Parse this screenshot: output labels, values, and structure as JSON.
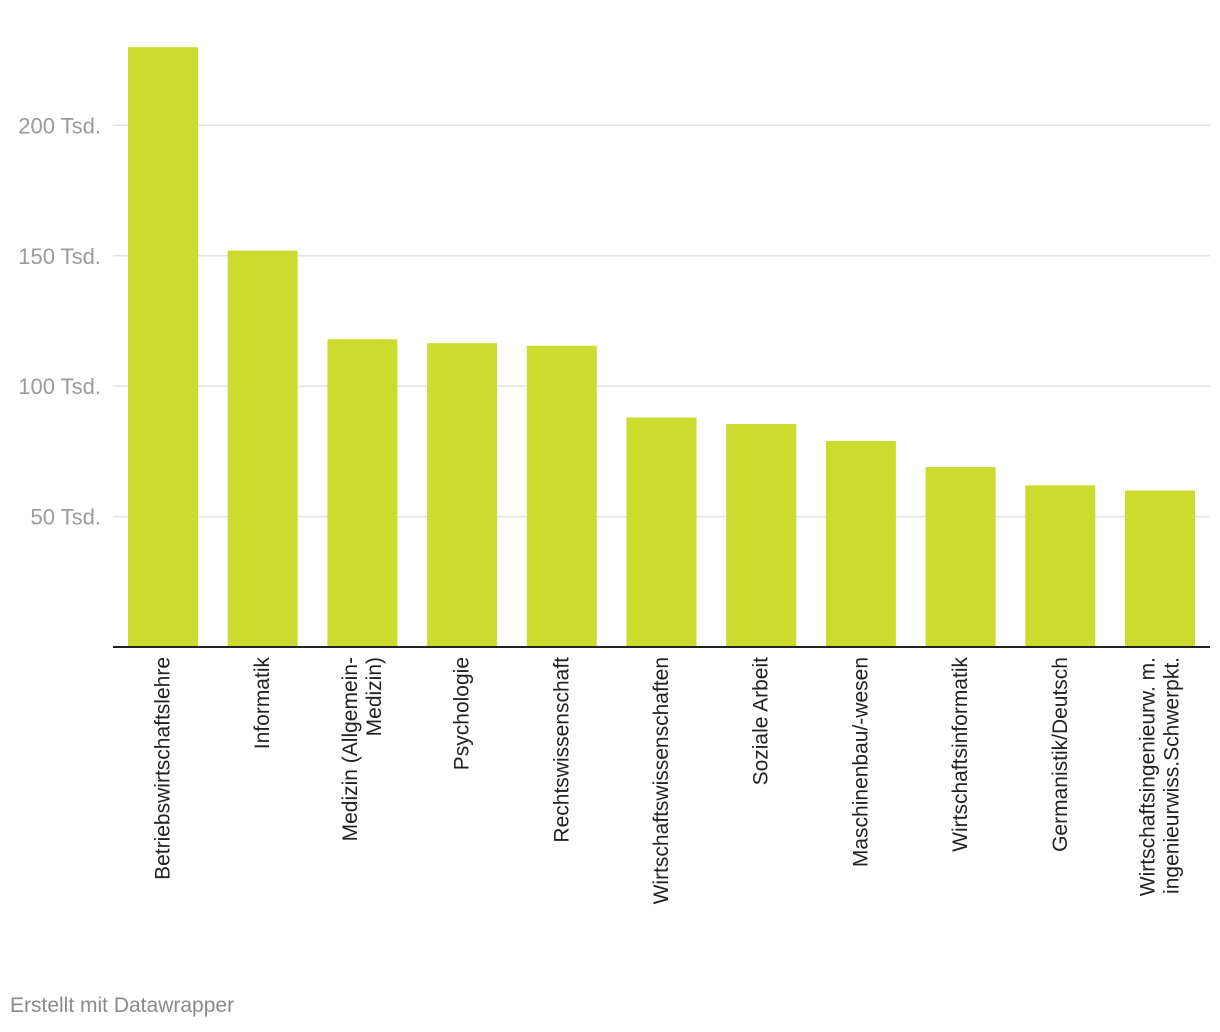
{
  "chart_data": {
    "type": "bar",
    "categories": [
      [
        "Betriebswirtschaftslehre"
      ],
      [
        "Informatik"
      ],
      [
        "Medizin (Allgemein-",
        "Medizin)"
      ],
      [
        "Psychologie"
      ],
      [
        "Rechtswissenschaft"
      ],
      [
        "Wirtschaftswissenschaften"
      ],
      [
        "Soziale Arbeit"
      ],
      [
        "Maschinenbau/-wesen"
      ],
      [
        "Wirtschaftsinformatik"
      ],
      [
        "Germanistik/Deutsch"
      ],
      [
        "Wirtschaftsingenieurw. m.",
        "ingenieurwiss.Schwerpkt."
      ]
    ],
    "values": [
      230000,
      152000,
      118000,
      116500,
      115500,
      88000,
      85500,
      79000,
      69000,
      62000,
      60000
    ],
    "y_ticks": [
      {
        "value": 50000,
        "label": "50 Tsd."
      },
      {
        "value": 100000,
        "label": "100 Tsd."
      },
      {
        "value": 150000,
        "label": "150 Tsd."
      },
      {
        "value": 200000,
        "label": "200 Tsd."
      }
    ],
    "ylim": [
      0,
      230000
    ],
    "grid": true,
    "bar_color": "#cbdc2e",
    "title": "",
    "xlabel": "",
    "ylabel": ""
  },
  "footer": {
    "credit": "Erstellt mit Datawrapper"
  }
}
